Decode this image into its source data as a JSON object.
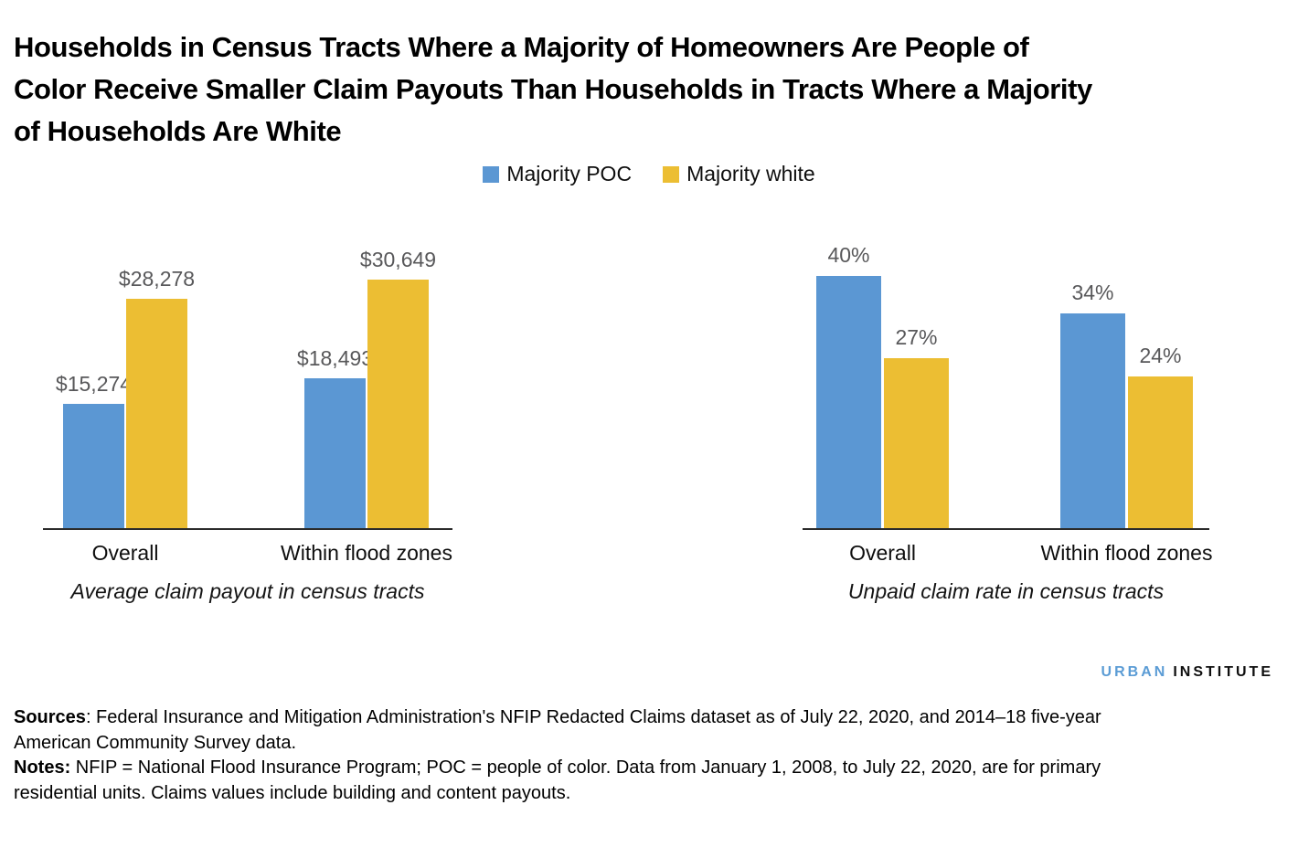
{
  "title_lines": [
    "Households in Census Tracts Where a Majority of Homeowners Are People of",
    "Color Receive Smaller Claim Payouts Than Households in Tracts Where a Majority",
    "of Households Are White"
  ],
  "legend": {
    "items": [
      {
        "label": "Majority POC",
        "color": "#5B97D3"
      },
      {
        "label": "Majority white",
        "color": "#ECBE33"
      }
    ]
  },
  "chart_data": [
    {
      "type": "bar",
      "title": "Average claim payout in census tracts",
      "categories": [
        "Overall",
        "Within flood zones"
      ],
      "series": [
        {
          "name": "Majority POC",
          "color": "#5B97D3",
          "values": [
            15274,
            18493
          ],
          "labels": [
            "$15,274",
            "$18,493"
          ]
        },
        {
          "name": "Majority white",
          "color": "#ECBE33",
          "values": [
            28278,
            30649
          ],
          "labels": [
            "$28,278",
            "$30,649"
          ]
        }
      ],
      "ylim": [
        0,
        31600
      ],
      "grid": false,
      "legend_position": "top-center",
      "value_label_format": "currency"
    },
    {
      "type": "bar",
      "title": "Unpaid claim rate in census tracts",
      "categories": [
        "Overall",
        "Within flood zones"
      ],
      "series": [
        {
          "name": "Majority POC",
          "color": "#5B97D3",
          "values": [
            40,
            34
          ],
          "labels": [
            "40%",
            "34%"
          ]
        },
        {
          "name": "Majority white",
          "color": "#ECBE33",
          "values": [
            27,
            24
          ],
          "labels": [
            "27%",
            "24%"
          ]
        }
      ],
      "ylim": [
        0,
        41
      ],
      "grid": false,
      "legend_position": "top-center",
      "value_label_format": "percent"
    }
  ],
  "colors": {
    "bar_blue": "#5B97D3",
    "bar_yellow": "#ECBE33",
    "value_label_gray": "#58585A",
    "axis_line": "#2B2B2B",
    "logo_blue": "#5B9CD5"
  },
  "footer": {
    "logo": {
      "part1": "URBAN",
      "part2": "INSTITUTE"
    },
    "sources_label": "Sources",
    "sources_rest": ": Federal Insurance and Mitigation Administration's NFIP Redacted Claims dataset as of July 22, 2020, and 2014–18 five-year American Community Survey data.",
    "notes_label": "Notes:",
    "notes_rest": " NFIP = National Flood Insurance Program; POC = people of color. Data from January 1, 2008, to July 22, 2020, are for primary residential units. Claims values include building and content payouts."
  }
}
